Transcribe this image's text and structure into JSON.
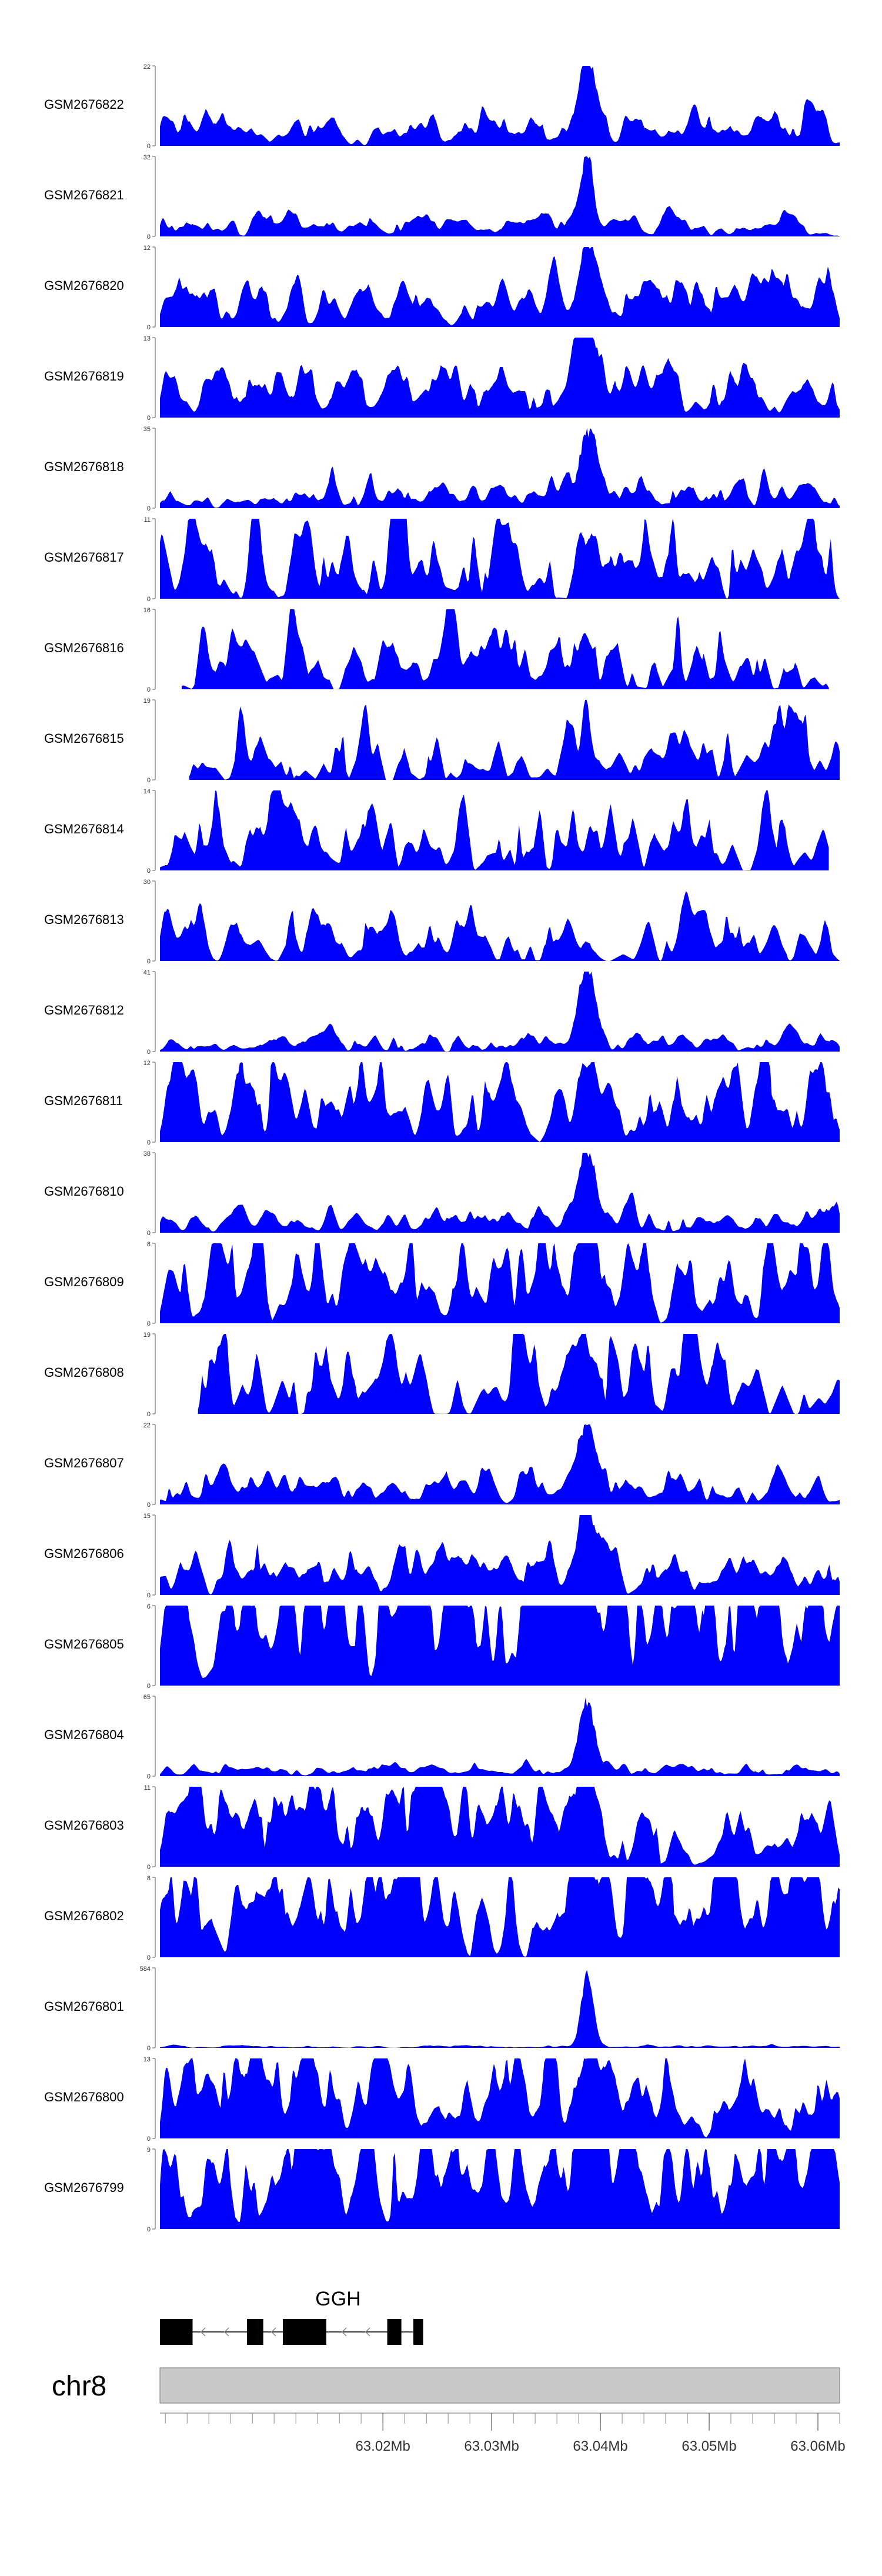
{
  "chart_data": {
    "type": "area",
    "title": "",
    "colors": {
      "signal": "#0000ff",
      "axis": "#555555",
      "gene": "#000000",
      "ideogram": "#c8c8c8"
    },
    "x_range_mb": [
      62.9995,
      63.062
    ],
    "tracks": [
      {
        "name": "GSM2676822",
        "ymax": "22",
        "ymin": "0",
        "noise": 0.14,
        "sparsity": 0.05,
        "peak_height": 1.0,
        "peak_width": 1.5,
        "seed": 11
      },
      {
        "name": "GSM2676821",
        "ymax": "32",
        "ymin": "0",
        "noise": 0.1,
        "sparsity": 0.1,
        "peak_height": 1.0,
        "peak_width": 1.3,
        "seed": 12
      },
      {
        "name": "GSM2676820",
        "ymax": "12",
        "ymin": "0",
        "noise": 0.2,
        "sparsity": 0.02,
        "peak_height": 1.0,
        "peak_width": 1.8,
        "seed": 13
      },
      {
        "name": "GSM2676819",
        "ymax": "13",
        "ymin": "0",
        "noise": 0.2,
        "sparsity": 0.02,
        "peak_height": 1.0,
        "peak_width": 1.8,
        "seed": 14
      },
      {
        "name": "GSM2676818",
        "ymax": "35",
        "ymin": "0",
        "noise": 0.16,
        "sparsity": 0.3,
        "peak_height": 1.0,
        "peak_width": 1.6,
        "seed": 15
      },
      {
        "name": "GSM2676817",
        "ymax": "11",
        "ymin": "0",
        "noise": 0.55,
        "sparsity": 0.6,
        "peak_height": 0.4,
        "peak_width": 1.0,
        "seed": 16
      },
      {
        "name": "GSM2676816",
        "ymax": "16",
        "ymin": "0",
        "noise": 0.45,
        "sparsity": 0.6,
        "peak_height": 0.25,
        "peak_width": 1.0,
        "seed": 17,
        "start_mb": 63.0015,
        "end_mb": 63.061
      },
      {
        "name": "GSM2676815",
        "ymax": "19",
        "ymin": "0",
        "noise": 0.45,
        "sparsity": 0.65,
        "peak_height": 0.25,
        "peak_width": 1.0,
        "seed": 18,
        "start_mb": 63.0022
      },
      {
        "name": "GSM2676814",
        "ymax": "14",
        "ymin": "0",
        "noise": 0.5,
        "sparsity": 0.6,
        "peak_height": 0.25,
        "peak_width": 1.0,
        "seed": 19,
        "end_mb": 63.061
      },
      {
        "name": "GSM2676813",
        "ymax": "30",
        "ymin": "0",
        "noise": 0.3,
        "sparsity": 0.6,
        "peak_height": 0.2,
        "peak_width": 1.0,
        "seed": 20
      },
      {
        "name": "GSM2676812",
        "ymax": "41",
        "ymin": "0",
        "noise": 0.1,
        "sparsity": 0.3,
        "peak_height": 1.0,
        "peak_width": 1.6,
        "seed": 21
      },
      {
        "name": "GSM2676811",
        "ymax": "12",
        "ymin": "0",
        "noise": 0.4,
        "sparsity": 0.35,
        "peak_height": 1.0,
        "peak_width": 1.7,
        "seed": 22
      },
      {
        "name": "GSM2676810",
        "ymax": "38",
        "ymin": "0",
        "noise": 0.12,
        "sparsity": 0.2,
        "peak_height": 1.0,
        "peak_width": 1.6,
        "seed": 23
      },
      {
        "name": "GSM2676809",
        "ymax": "8",
        "ymin": "0",
        "noise": 0.45,
        "sparsity": 0.25,
        "peak_height": 1.0,
        "peak_width": 2.2,
        "seed": 24
      },
      {
        "name": "GSM2676808",
        "ymax": "19",
        "ymin": "0",
        "noise": 0.45,
        "sparsity": 0.55,
        "peak_height": 0.3,
        "peak_width": 1.0,
        "seed": 25,
        "start_mb": 63.003
      },
      {
        "name": "GSM2676807",
        "ymax": "22",
        "ymin": "0",
        "noise": 0.14,
        "sparsity": 0.15,
        "peak_height": 1.0,
        "peak_width": 1.6,
        "seed": 26
      },
      {
        "name": "GSM2676806",
        "ymax": "15",
        "ymin": "0",
        "noise": 0.25,
        "sparsity": 0.3,
        "peak_height": 1.0,
        "peak_width": 2.0,
        "seed": 27
      },
      {
        "name": "GSM2676805",
        "ymax": "6",
        "ymin": "0",
        "noise": 0.65,
        "sparsity": 0.05,
        "peak_height": 0.55,
        "peak_width": 1.0,
        "seed": 28
      },
      {
        "name": "GSM2676804",
        "ymax": "65",
        "ymin": "0",
        "noise": 0.05,
        "sparsity": 0.1,
        "peak_height": 1.0,
        "peak_width": 1.5,
        "seed": 29
      },
      {
        "name": "GSM2676803",
        "ymax": "11",
        "ymin": "0",
        "noise": 0.4,
        "sparsity": 0.15,
        "peak_height": 1.0,
        "peak_width": 2.0,
        "seed": 30
      },
      {
        "name": "GSM2676802",
        "ymax": "8",
        "ymin": "0",
        "noise": 0.55,
        "sparsity": 0.2,
        "peak_height": 1.0,
        "peak_width": 1.6,
        "seed": 31
      },
      {
        "name": "GSM2676801",
        "ymax": "584",
        "ymin": "0",
        "noise": 0.01,
        "sparsity": 0.0,
        "peak_height": 1.0,
        "peak_width": 1.2,
        "seed": 32
      },
      {
        "name": "GSM2676800",
        "ymax": "13",
        "ymin": "0",
        "noise": 0.35,
        "sparsity": 0.15,
        "peak_height": 1.0,
        "peak_width": 2.0,
        "seed": 33
      },
      {
        "name": "GSM2676799",
        "ymax": "9",
        "ymin": "0",
        "noise": 0.45,
        "sparsity": 0.1,
        "peak_height": 1.0,
        "peak_width": 2.2,
        "seed": 34
      }
    ],
    "peak_center_mb": 63.0388,
    "gene": {
      "name": "GGH",
      "strand": "-",
      "start_mb": 62.9995,
      "end_mb": 63.0237,
      "exons_mb": [
        [
          62.9995,
          63.0025
        ],
        [
          63.0075,
          63.0085
        ],
        [
          63.0085,
          63.009
        ],
        [
          63.0108,
          63.0148
        ],
        [
          63.0204,
          63.0217
        ],
        [
          63.0228,
          63.0237
        ]
      ]
    },
    "chromosome": {
      "name": "chr8"
    },
    "axis_ticks": [
      "63.02Mb",
      "63.03Mb",
      "63.04Mb",
      "63.05Mb",
      "63.06Mb"
    ],
    "axis_tick_values_mb": [
      63.02,
      63.03,
      63.04,
      63.05,
      63.06
    ],
    "minor_tick_step_mb": 0.002
  }
}
